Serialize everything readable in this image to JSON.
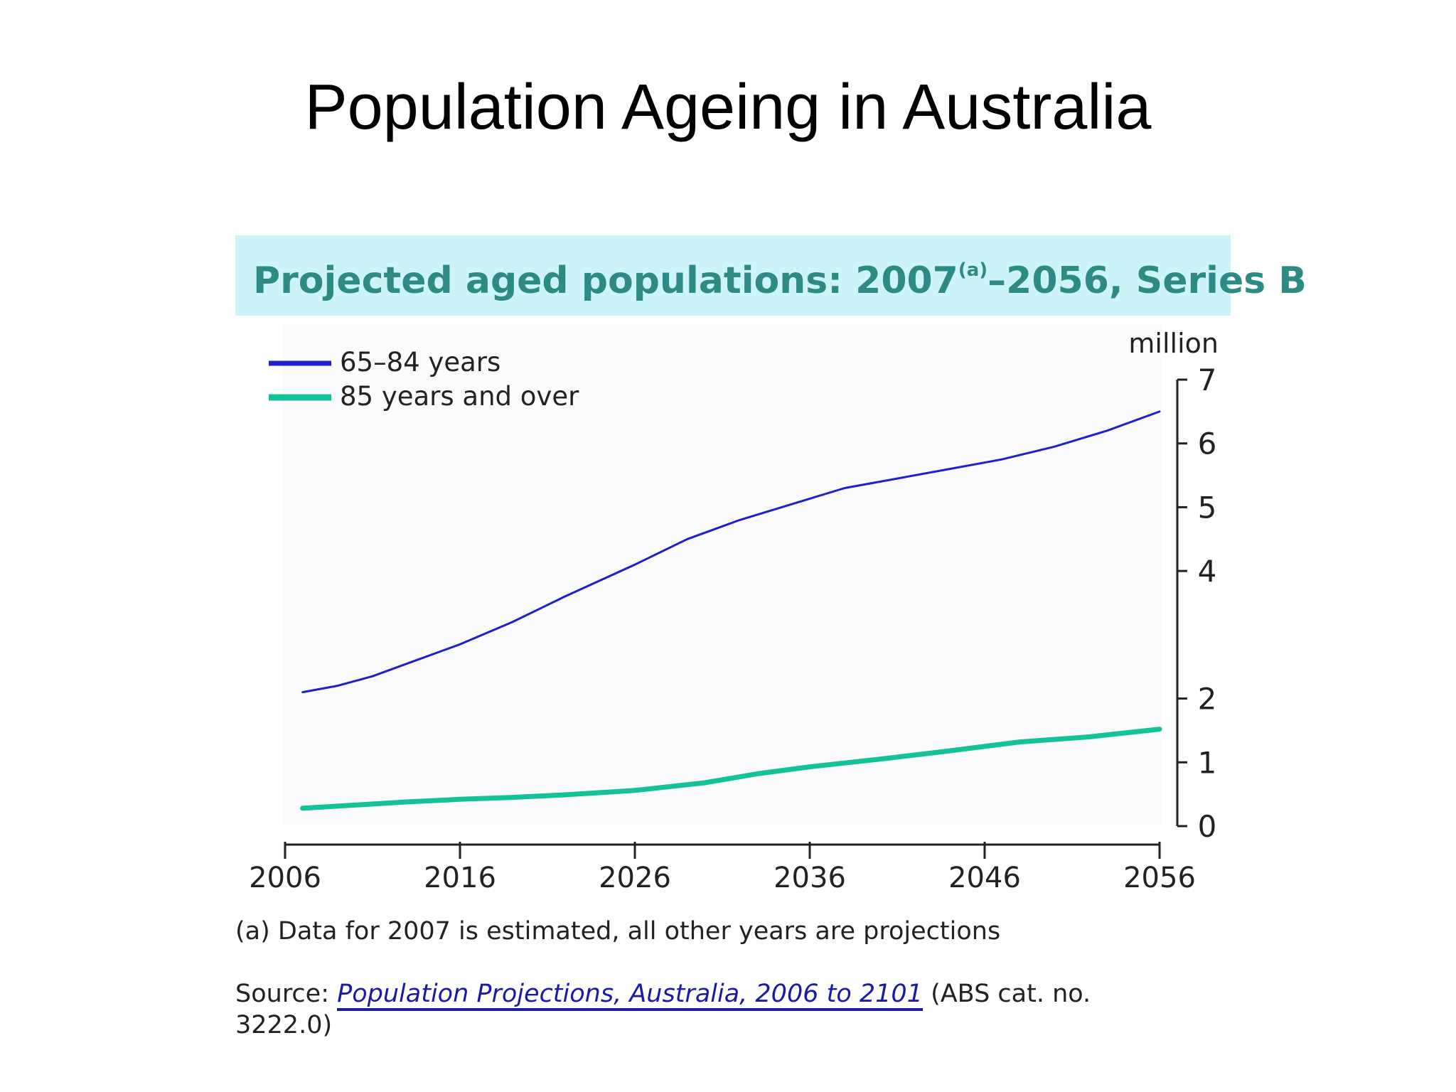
{
  "slide": {
    "title": "Population Ageing in Australia"
  },
  "chart_data": {
    "type": "line",
    "title": "Projected aged populations: 2007",
    "title_superscript": "(a)",
    "title_suffix": "–2056, Series B",
    "ylabel": "million",
    "x_ticks": [
      2006,
      2016,
      2026,
      2036,
      2046,
      2056
    ],
    "y_ticks": [
      0,
      1,
      2,
      4,
      5,
      6,
      7
    ],
    "xlim": [
      2006,
      2056
    ],
    "y_axis_side": "right",
    "grid": false,
    "legend_position": "top-left",
    "colors": {
      "header_bg": "#cdf5f7",
      "header_text": "#2e8b84",
      "series_1": "#1f1fd0",
      "series_2": "#14c29a",
      "plot_bg": "#fbfbfd"
    },
    "series": [
      {
        "name": "65–84 years",
        "x": [
          2007,
          2009,
          2011,
          2013,
          2016,
          2019,
          2022,
          2026,
          2029,
          2032,
          2035,
          2038,
          2041,
          2044,
          2047,
          2050,
          2053,
          2056
        ],
        "values": [
          2.1,
          2.2,
          2.35,
          2.55,
          2.85,
          3.2,
          3.6,
          4.1,
          4.5,
          4.8,
          5.05,
          5.3,
          5.45,
          5.6,
          5.75,
          5.95,
          6.2,
          6.5
        ]
      },
      {
        "name": "85 years and over",
        "x": [
          2007,
          2010,
          2013,
          2016,
          2019,
          2022,
          2026,
          2030,
          2033,
          2036,
          2040,
          2044,
          2048,
          2052,
          2056
        ],
        "values": [
          0.28,
          0.33,
          0.38,
          0.42,
          0.45,
          0.49,
          0.56,
          0.68,
          0.82,
          0.93,
          1.05,
          1.18,
          1.32,
          1.4,
          1.52
        ]
      }
    ]
  },
  "footnote": "(a) Data for 2007 is estimated, all other years are projections",
  "source": {
    "prefix": "Source: ",
    "link": "Population Projections, Australia, 2006 to 2101",
    "suffix": " (ABS cat. no. 3222.0)"
  }
}
